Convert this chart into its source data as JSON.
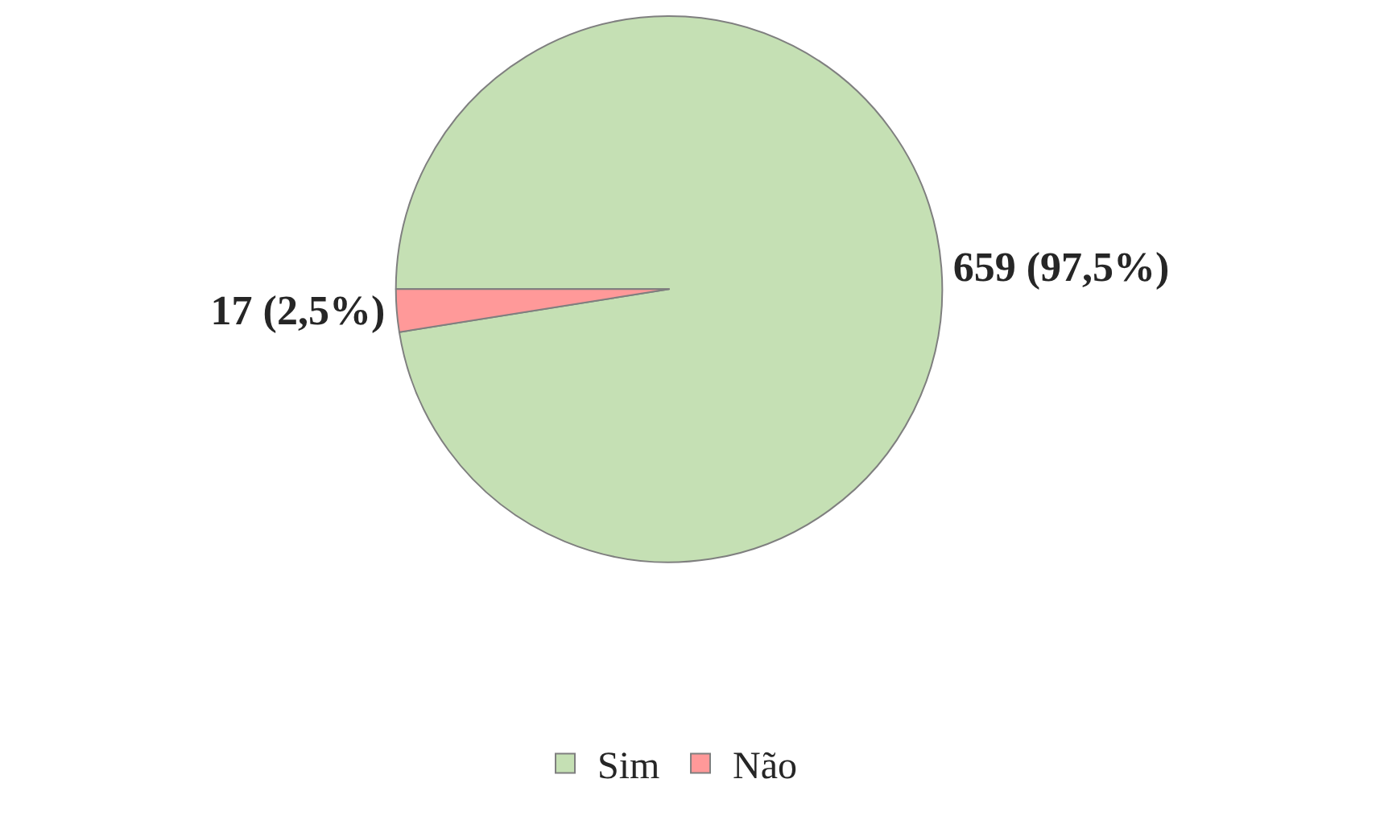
{
  "chart_data": {
    "type": "pie",
    "categories": [
      "Sim",
      "Não"
    ],
    "values": [
      659,
      17
    ],
    "colors": [
      "#c5e0b4",
      "#ff9999"
    ],
    "value_labels": [
      "659 (97,5%)",
      "17 (2,5%)"
    ],
    "legend": "bottom"
  }
}
